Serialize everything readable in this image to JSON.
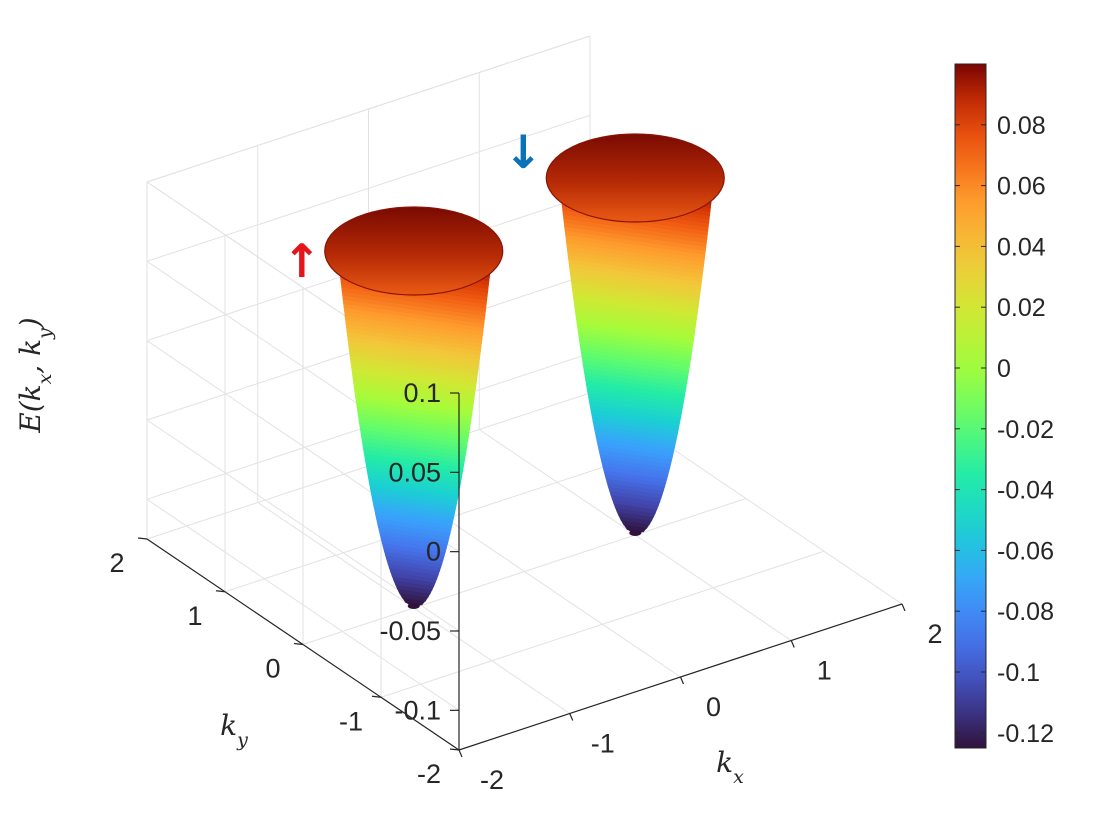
{
  "chart_data": {
    "type": "surface3d",
    "title": "",
    "xlabel": "k_x",
    "ylabel": "k_y",
    "zlabel": "E(k_x, k_y)",
    "xlim": [
      -2,
      2
    ],
    "ylim": [
      -2,
      2
    ],
    "zlim": [
      -0.125,
      0.1
    ],
    "x_ticks": [
      "-2",
      "-1",
      "0",
      "1",
      "2"
    ],
    "y_ticks": [
      "-2",
      "-1",
      "0",
      "1",
      "2"
    ],
    "z_ticks": [
      "-0.1",
      "-0.05",
      "0",
      "0.05",
      "0.1"
    ],
    "grid": true,
    "series": [
      {
        "spin": "up",
        "center_kx": -1.0,
        "center_ky": 0.0,
        "min_energy": -0.125,
        "max_energy": 0.1,
        "rim_radius": 0.6
      },
      {
        "spin": "down",
        "center_kx": 1.0,
        "center_ky": 0.0,
        "min_energy": -0.125,
        "max_energy": 0.1,
        "rim_radius": 0.6
      }
    ],
    "annotations": [
      {
        "text": "↑",
        "color": "#e4151b",
        "attached_to": "spin-up surface"
      },
      {
        "text": "↓",
        "color": "#0a72b8",
        "attached_to": "spin-down surface"
      }
    ],
    "colorbar": {
      "colormap": "turbo",
      "range": [
        -0.125,
        0.1
      ],
      "ticks": [
        "0.08",
        "0.06",
        "0.04",
        "0.02",
        "0",
        "-0.02",
        "-0.04",
        "-0.06",
        "-0.08",
        "-0.1",
        "-0.12"
      ]
    }
  }
}
